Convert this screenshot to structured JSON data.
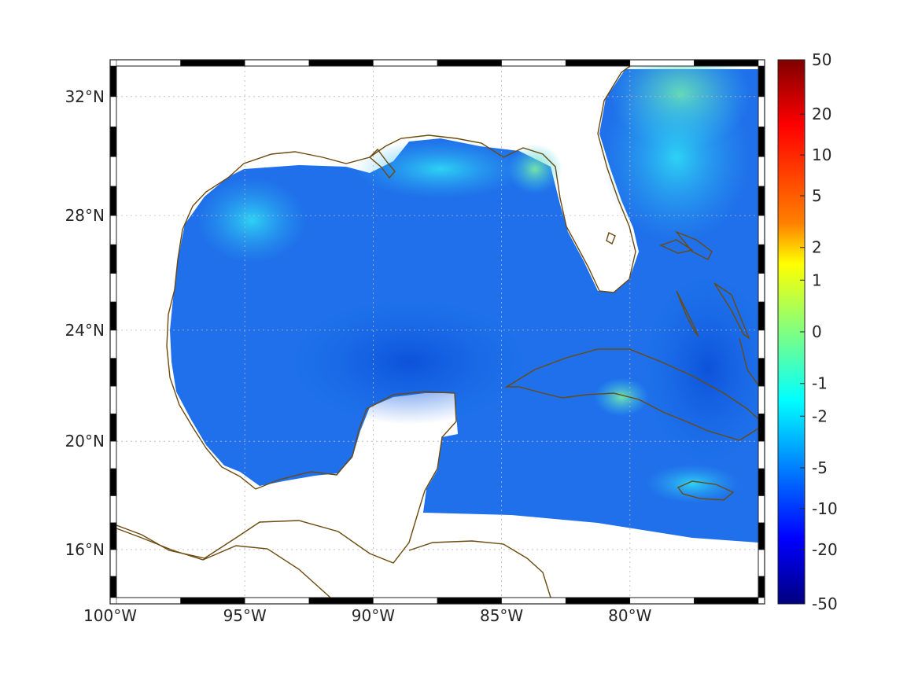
{
  "map": {
    "projection": "mercator",
    "lon_range": [
      -100,
      -75
    ],
    "lat_range": [
      14.2,
      33
    ],
    "grid": true,
    "lon_ticks": [
      {
        "lon": -100,
        "label": "100°W"
      },
      {
        "lon": -95,
        "label": "95°W"
      },
      {
        "lon": -90,
        "label": "90°W"
      },
      {
        "lon": -85,
        "label": "85°W"
      },
      {
        "lon": -80,
        "label": "80°W"
      }
    ],
    "lat_ticks": [
      {
        "lat": 16,
        "label": "16°N"
      },
      {
        "lat": 20,
        "label": "20°N"
      },
      {
        "lat": 24,
        "label": "24°N"
      },
      {
        "lat": 28,
        "label": "28°N"
      },
      {
        "lat": 32,
        "label": "32°N"
      }
    ],
    "field_palette": "jet",
    "field_description_colors": {
      "ocean_dominant": "#1f6fe8",
      "coast_highlight": "#29d3f0",
      "land": "#ffffff",
      "coastline": "#6b4a10"
    }
  },
  "colorbar": {
    "palette": "jet",
    "placement": "right",
    "scale": "nonlinear",
    "ticks": [
      {
        "value": 50,
        "label": "50"
      },
      {
        "value": 20,
        "label": "20"
      },
      {
        "value": 10,
        "label": "10"
      },
      {
        "value": 5,
        "label": "5"
      },
      {
        "value": 2,
        "label": "2"
      },
      {
        "value": 1,
        "label": "1"
      },
      {
        "value": 0,
        "label": "0"
      },
      {
        "value": -1,
        "label": "-1"
      },
      {
        "value": -2,
        "label": "-2"
      },
      {
        "value": -5,
        "label": "-5"
      },
      {
        "value": -10,
        "label": "-10"
      },
      {
        "value": -20,
        "label": "-20"
      },
      {
        "value": -50,
        "label": "-50"
      }
    ],
    "tick_fraction_from_top": [
      0,
      0.1,
      0.175,
      0.25,
      0.345,
      0.405,
      0.5,
      0.595,
      0.655,
      0.75,
      0.825,
      0.9,
      1
    ]
  }
}
